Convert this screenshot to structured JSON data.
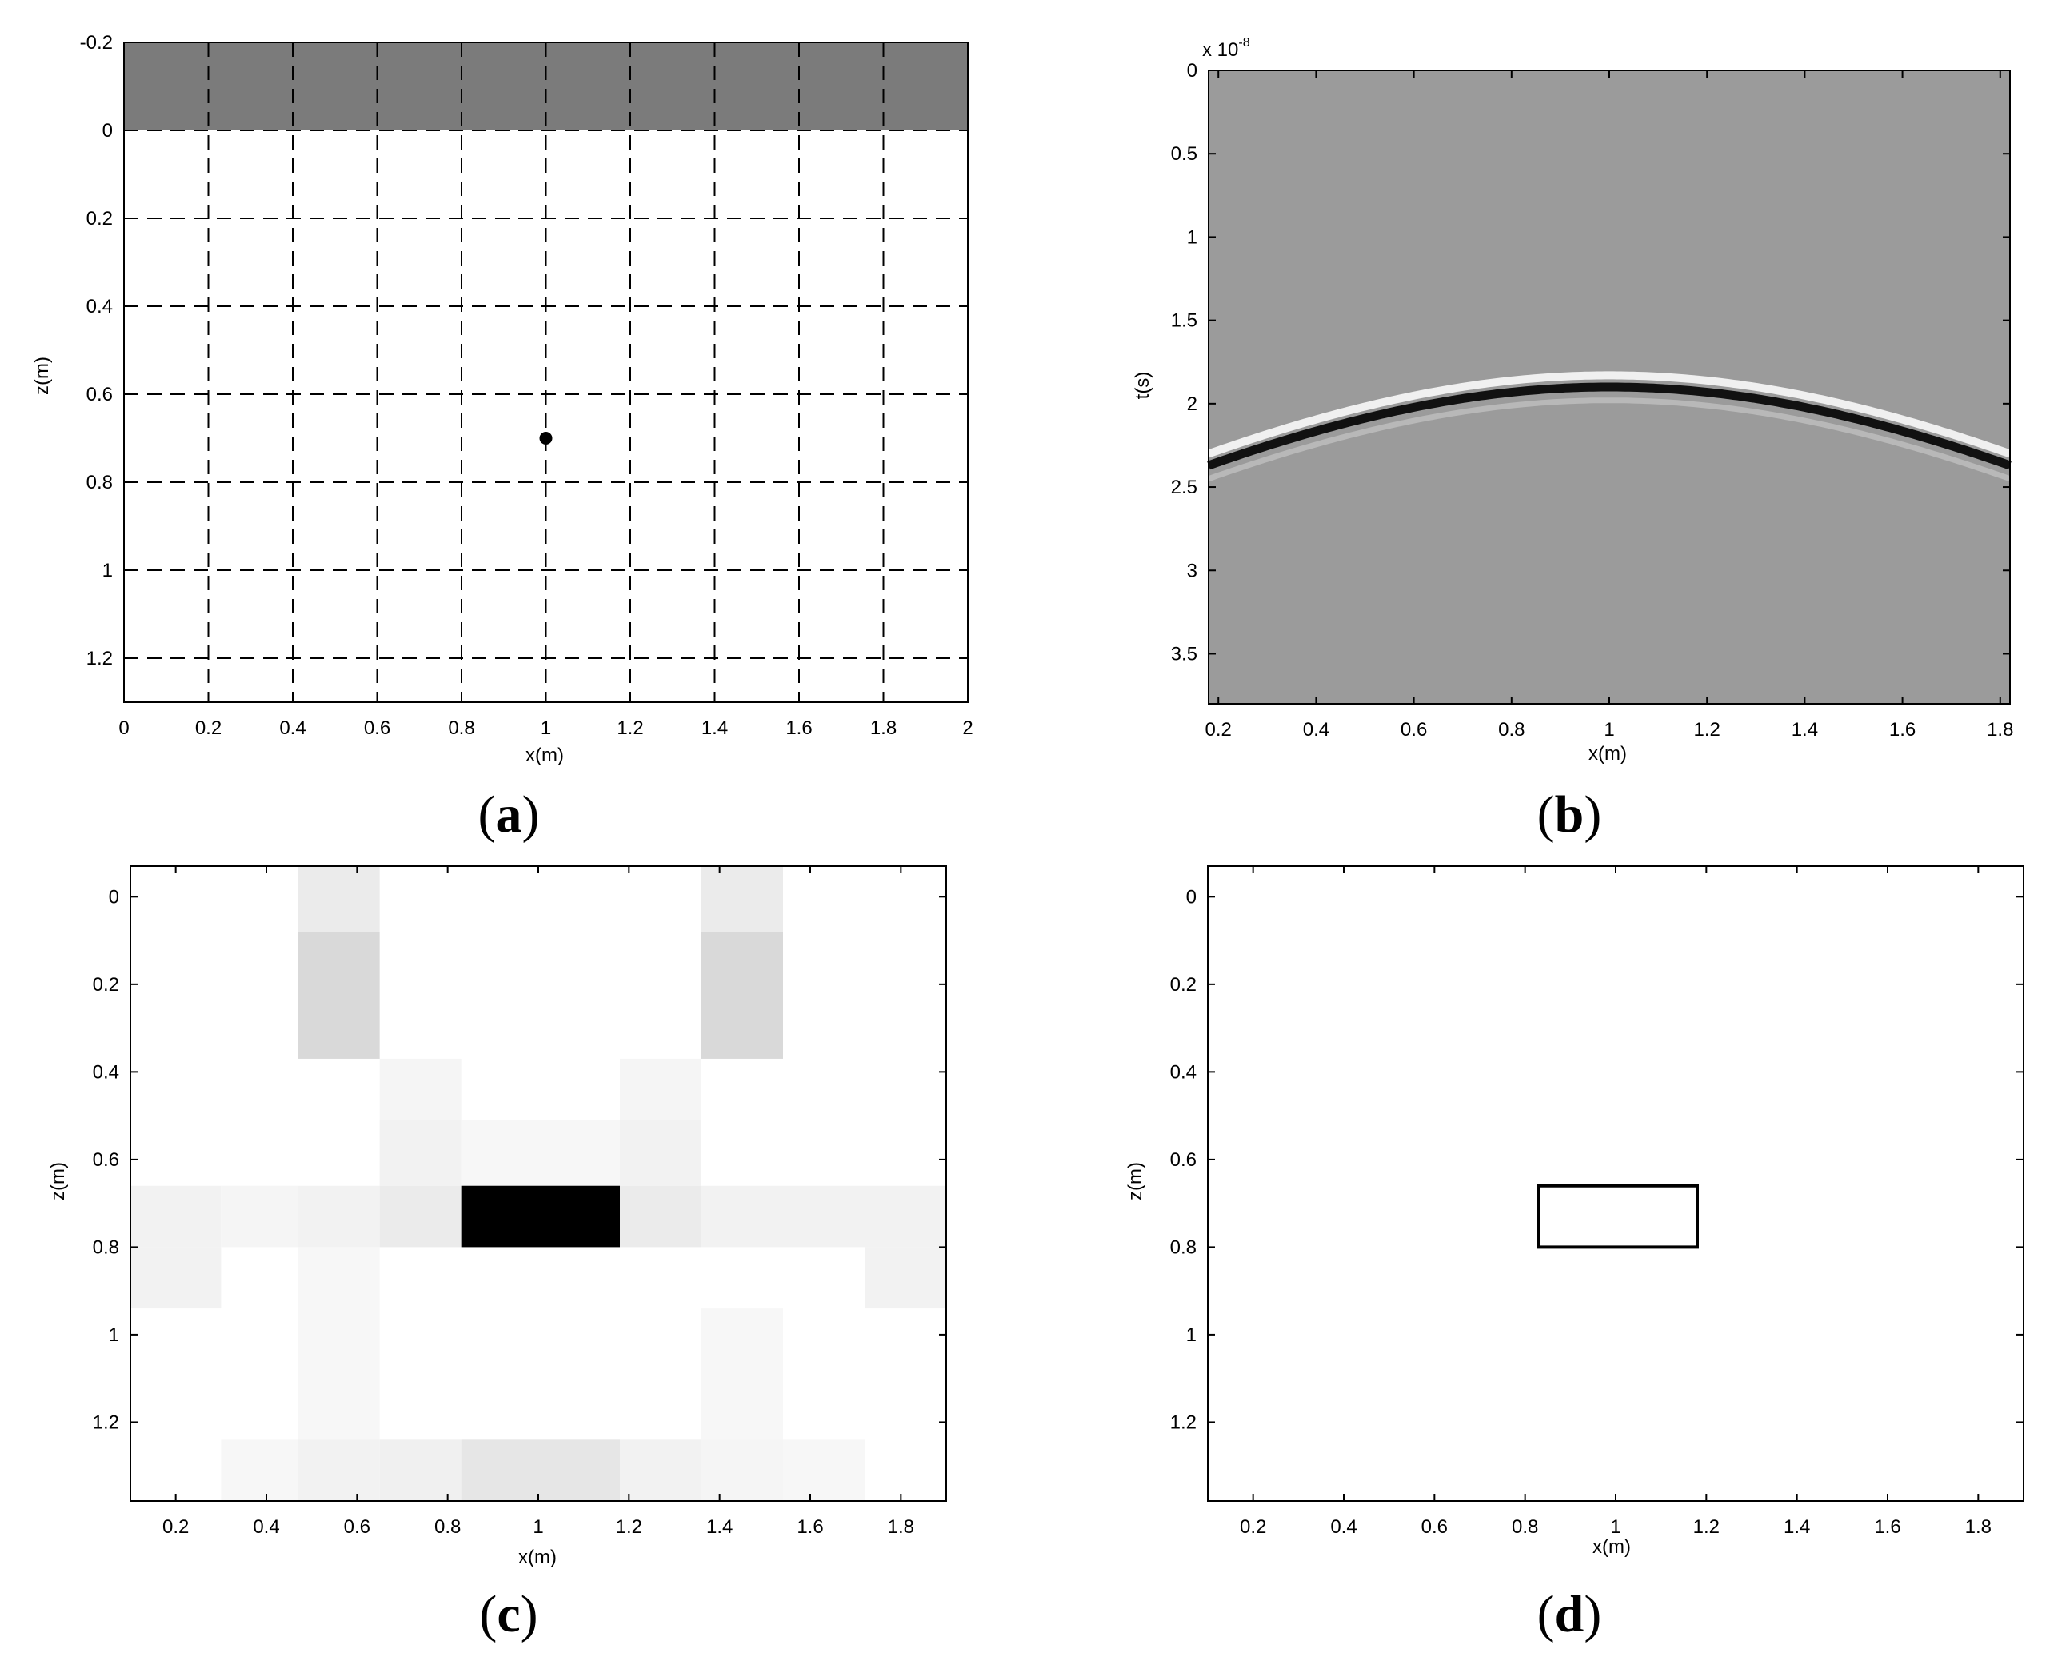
{
  "figure": {
    "colors": {
      "air_layer": "#7b7b7b",
      "grid_dashes": "#000000",
      "target": "#000000",
      "radargram_background": "#9b9b9b",
      "background": "#ffffff"
    }
  },
  "chart_data": [
    {
      "id": "a",
      "type": "scatter",
      "caption": {
        "open": "(",
        "letter": "a",
        "close": ")"
      },
      "xlabel": "x(m)",
      "ylabel": "z(m)",
      "xlim": [
        0,
        2
      ],
      "ylim": [
        -0.2,
        1.3
      ],
      "y_reversed": true,
      "grid": true,
      "grid_style": "dashed",
      "xticks": [
        0,
        0.2,
        0.4,
        0.6,
        0.8,
        1,
        1.2,
        1.4,
        1.6,
        1.8,
        2
      ],
      "xtick_labels": [
        "0",
        "0.2",
        "0.4",
        "0.6",
        "0.8",
        "1",
        "1.2",
        "1.4",
        "1.6",
        "1.8",
        "2"
      ],
      "yticks": [
        -0.2,
        0,
        0.2,
        0.4,
        0.6,
        0.8,
        1,
        1.2
      ],
      "ytick_labels": [
        "-0.2",
        "0",
        "0.2",
        "0.4",
        "0.6",
        "0.8",
        "1",
        "1.2"
      ],
      "air_layer": {
        "z_from": -0.2,
        "z_to": 0
      },
      "points": [
        {
          "x": 1.0,
          "z": 0.7
        }
      ]
    },
    {
      "id": "b",
      "type": "heatmap",
      "caption": {
        "open": "(",
        "letter": "b",
        "close": ")"
      },
      "xlabel": "x(m)",
      "ylabel": "t(s)",
      "y_scale_label": "x 10",
      "y_scale_exponent": "-8",
      "xlim": [
        0.18,
        1.82
      ],
      "ylim": [
        0,
        3.8
      ],
      "y_reversed": true,
      "xticks": [
        0.2,
        0.4,
        0.6,
        0.8,
        1,
        1.2,
        1.4,
        1.6,
        1.8
      ],
      "xtick_labels": [
        "0.2",
        "0.4",
        "0.6",
        "0.8",
        "1",
        "1.2",
        "1.4",
        "1.6",
        "1.8"
      ],
      "yticks": [
        0,
        0.5,
        1,
        1.5,
        2,
        2.5,
        3,
        3.5
      ],
      "ytick_labels": [
        "0",
        "0.5",
        "1",
        "1.5",
        "2",
        "2.5",
        "3",
        "3.5"
      ],
      "hyperbola": {
        "apex_x": 1.0,
        "apex_t": 1.9,
        "edge_t_at_x_0_2": 2.35,
        "edge_t_at_x_1_8": 2.35
      }
    },
    {
      "id": "c",
      "type": "heatmap",
      "caption": {
        "open": "(",
        "letter": "c",
        "close": ")"
      },
      "xlabel": "x(m)",
      "ylabel": "z(m)",
      "xlim": [
        0.1,
        1.9
      ],
      "ylim": [
        -0.07,
        1.38
      ],
      "y_reversed": true,
      "xticks": [
        0.2,
        0.4,
        0.6,
        0.8,
        1,
        1.2,
        1.4,
        1.6,
        1.8
      ],
      "xtick_labels": [
        "0.2",
        "0.4",
        "0.6",
        "0.8",
        "1",
        "1.2",
        "1.4",
        "1.6",
        "1.8"
      ],
      "yticks": [
        0,
        0.2,
        0.4,
        0.6,
        0.8,
        1,
        1.2
      ],
      "ytick_labels": [
        "0",
        "0.2",
        "0.4",
        "0.6",
        "0.8",
        "1",
        "1.2"
      ],
      "cells": [
        {
          "x0": 0.47,
          "x1": 0.65,
          "z0": -0.07,
          "z1": 0.08,
          "value": 0.08
        },
        {
          "x0": 1.36,
          "x1": 1.54,
          "z0": -0.07,
          "z1": 0.08,
          "value": 0.08
        },
        {
          "x0": 0.47,
          "x1": 0.65,
          "z0": 0.08,
          "z1": 0.37,
          "value": 0.15
        },
        {
          "x0": 1.36,
          "x1": 1.54,
          "z0": 0.08,
          "z1": 0.37,
          "value": 0.15
        },
        {
          "x0": 0.65,
          "x1": 0.83,
          "z0": 0.37,
          "z1": 0.51,
          "value": 0.04
        },
        {
          "x0": 1.18,
          "x1": 1.36,
          "z0": 0.37,
          "z1": 0.51,
          "value": 0.04
        },
        {
          "x0": 0.65,
          "x1": 0.83,
          "z0": 0.51,
          "z1": 0.66,
          "value": 0.05
        },
        {
          "x0": 0.83,
          "x1": 1.18,
          "z0": 0.51,
          "z1": 0.66,
          "value": 0.03
        },
        {
          "x0": 1.18,
          "x1": 1.36,
          "z0": 0.51,
          "z1": 0.66,
          "value": 0.05
        },
        {
          "x0": 0.1,
          "x1": 0.3,
          "z0": 0.66,
          "z1": 0.8,
          "value": 0.05
        },
        {
          "x0": 0.3,
          "x1": 0.47,
          "z0": 0.66,
          "z1": 0.8,
          "value": 0.04
        },
        {
          "x0": 0.47,
          "x1": 0.65,
          "z0": 0.66,
          "z1": 0.8,
          "value": 0.05
        },
        {
          "x0": 0.65,
          "x1": 0.83,
          "z0": 0.66,
          "z1": 0.8,
          "value": 0.08
        },
        {
          "x0": 0.83,
          "x1": 1.18,
          "z0": 0.66,
          "z1": 0.8,
          "value": 1.0
        },
        {
          "x0": 1.18,
          "x1": 1.36,
          "z0": 0.66,
          "z1": 0.8,
          "value": 0.08
        },
        {
          "x0": 1.36,
          "x1": 1.54,
          "z0": 0.66,
          "z1": 0.8,
          "value": 0.05
        },
        {
          "x0": 1.54,
          "x1": 1.72,
          "z0": 0.66,
          "z1": 0.8,
          "value": 0.05
        },
        {
          "x0": 1.72,
          "x1": 1.9,
          "z0": 0.66,
          "z1": 0.8,
          "value": 0.05
        },
        {
          "x0": 0.1,
          "x1": 0.3,
          "z0": 0.8,
          "z1": 0.94,
          "value": 0.05
        },
        {
          "x0": 1.72,
          "x1": 1.9,
          "z0": 0.8,
          "z1": 0.94,
          "value": 0.05
        },
        {
          "x0": 0.47,
          "x1": 0.65,
          "z0": 0.8,
          "z1": 1.24,
          "value": 0.03
        },
        {
          "x0": 1.36,
          "x1": 1.54,
          "z0": 0.94,
          "z1": 1.24,
          "value": 0.03
        },
        {
          "x0": 0.3,
          "x1": 0.47,
          "z0": 1.24,
          "z1": 1.38,
          "value": 0.03
        },
        {
          "x0": 0.47,
          "x1": 0.65,
          "z0": 1.24,
          "z1": 1.38,
          "value": 0.05
        },
        {
          "x0": 0.65,
          "x1": 0.83,
          "z0": 1.24,
          "z1": 1.38,
          "value": 0.06
        },
        {
          "x0": 0.83,
          "x1": 1.18,
          "z0": 1.24,
          "z1": 1.38,
          "value": 0.1
        },
        {
          "x0": 1.18,
          "x1": 1.36,
          "z0": 1.24,
          "z1": 1.38,
          "value": 0.05
        },
        {
          "x0": 1.36,
          "x1": 1.54,
          "z0": 1.24,
          "z1": 1.38,
          "value": 0.04
        },
        {
          "x0": 1.54,
          "x1": 1.72,
          "z0": 1.24,
          "z1": 1.38,
          "value": 0.03
        }
      ]
    },
    {
      "id": "d",
      "type": "scatter",
      "caption": {
        "open": "(",
        "letter": "d",
        "close": ")"
      },
      "xlabel": "x(m)",
      "ylabel": "z(m)",
      "xlim": [
        0.1,
        1.9
      ],
      "ylim": [
        -0.07,
        1.38
      ],
      "y_reversed": true,
      "xticks": [
        0.2,
        0.4,
        0.6,
        0.8,
        1,
        1.2,
        1.4,
        1.6,
        1.8
      ],
      "xtick_labels": [
        "0.2",
        "0.4",
        "0.6",
        "0.8",
        "1",
        "1.2",
        "1.4",
        "1.6",
        "1.8"
      ],
      "yticks": [
        0,
        0.2,
        0.4,
        0.6,
        0.8,
        1,
        1.2
      ],
      "ytick_labels": [
        "0",
        "0.2",
        "0.4",
        "0.6",
        "0.8",
        "1",
        "1.2"
      ],
      "target_box": {
        "x0": 0.83,
        "x1": 1.18,
        "z0": 0.66,
        "z1": 0.8
      }
    }
  ]
}
